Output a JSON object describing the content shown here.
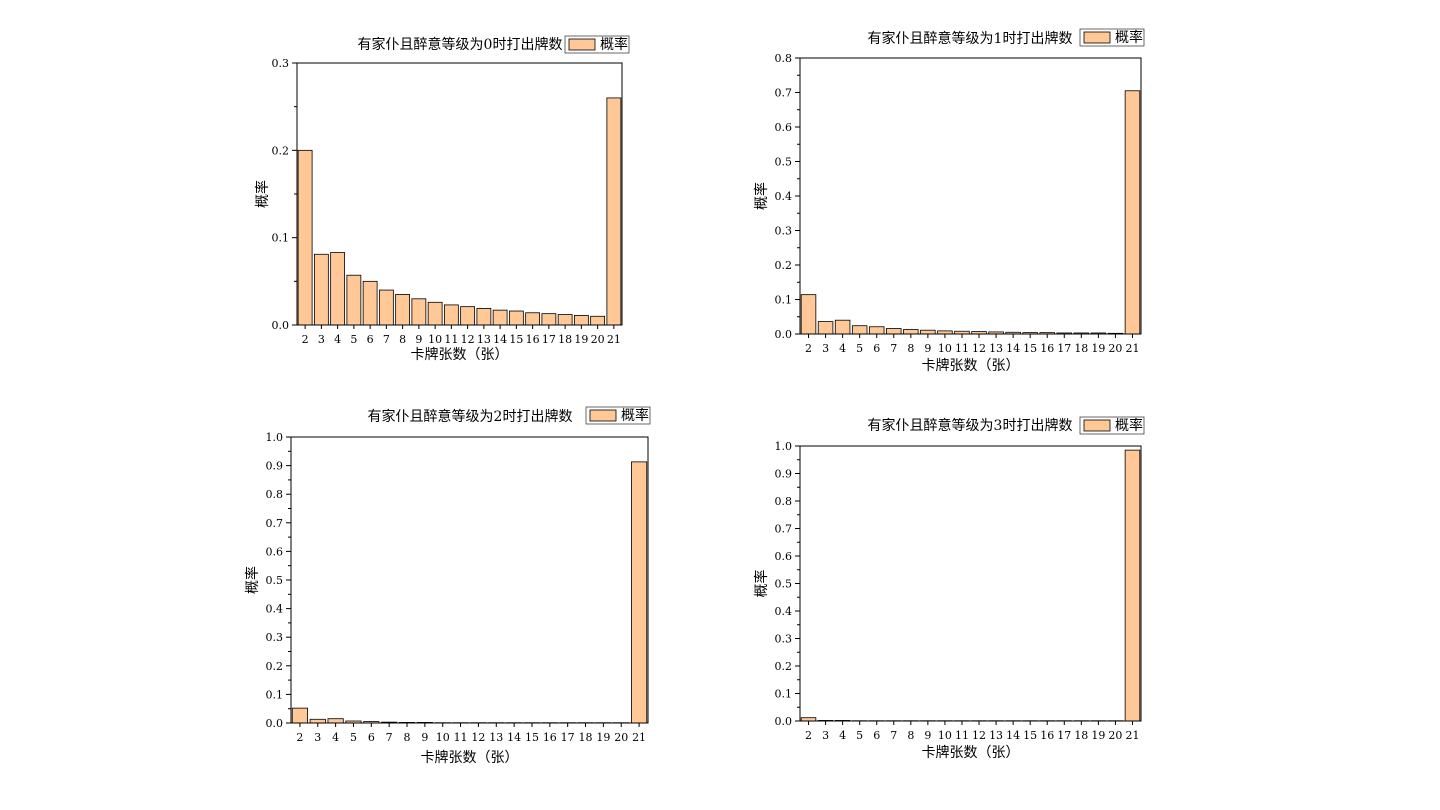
{
  "chart_data": [
    {
      "type": "bar",
      "title": "有家仆且醉意等级为0时打出牌数",
      "legend": "概率",
      "xlabel": "卡牌张数（张）",
      "ylabel": "概率",
      "ylim": [
        0,
        0.3
      ],
      "yticks": [
        0.0,
        0.1,
        0.2,
        0.3
      ],
      "ytick_labels": [
        "0.0",
        "0.1",
        "0.2",
        "0.3"
      ],
      "categories": [
        "2",
        "3",
        "4",
        "5",
        "6",
        "7",
        "8",
        "9",
        "10",
        "11",
        "12",
        "13",
        "14",
        "15",
        "16",
        "17",
        "18",
        "19",
        "20",
        "21"
      ],
      "values": [
        0.2,
        0.081,
        0.083,
        0.057,
        0.05,
        0.04,
        0.035,
        0.03,
        0.026,
        0.023,
        0.021,
        0.019,
        0.017,
        0.016,
        0.014,
        0.013,
        0.012,
        0.011,
        0.01,
        0.26
      ]
    },
    {
      "type": "bar",
      "title": "有家仆且醉意等级为1时打出牌数",
      "legend": "概率",
      "xlabel": "卡牌张数（张）",
      "ylabel": "概率",
      "ylim": [
        0,
        0.8
      ],
      "yticks": [
        0.0,
        0.1,
        0.2,
        0.3,
        0.4,
        0.5,
        0.6,
        0.7,
        0.8
      ],
      "ytick_labels": [
        "0.0",
        "0.1",
        "0.2",
        "0.3",
        "0.4",
        "0.5",
        "0.6",
        "0.7",
        "0.8"
      ],
      "categories": [
        "2",
        "3",
        "4",
        "5",
        "6",
        "7",
        "8",
        "9",
        "10",
        "11",
        "12",
        "13",
        "14",
        "15",
        "16",
        "17",
        "18",
        "19",
        "20",
        "21"
      ],
      "values": [
        0.114,
        0.036,
        0.04,
        0.024,
        0.021,
        0.016,
        0.013,
        0.011,
        0.009,
        0.008,
        0.007,
        0.006,
        0.005,
        0.004,
        0.004,
        0.003,
        0.003,
        0.003,
        0.002,
        0.705
      ]
    },
    {
      "type": "bar",
      "title": "有家仆且醉意等级为2时打出牌数",
      "legend": "概率",
      "xlabel": "卡牌张数（张）",
      "ylabel": "概率",
      "ylim": [
        0,
        1.0
      ],
      "yticks": [
        0.0,
        0.1,
        0.2,
        0.3,
        0.4,
        0.5,
        0.6,
        0.7,
        0.8,
        0.9,
        1.0
      ],
      "ytick_labels": [
        "0.0",
        "0.1",
        "0.2",
        "0.3",
        "0.4",
        "0.5",
        "0.6",
        "0.7",
        "0.8",
        "0.9",
        "1.0"
      ],
      "categories": [
        "2",
        "3",
        "4",
        "5",
        "6",
        "7",
        "8",
        "9",
        "10",
        "11",
        "12",
        "13",
        "14",
        "15",
        "16",
        "17",
        "18",
        "19",
        "20",
        "21"
      ],
      "values": [
        0.052,
        0.013,
        0.015,
        0.007,
        0.005,
        0.003,
        0.002,
        0.002,
        0.001,
        0.001,
        0.001,
        0.001,
        0.001,
        0.001,
        0.001,
        0.001,
        0.001,
        0.001,
        0.001,
        0.913
      ]
    },
    {
      "type": "bar",
      "title": "有家仆且醉意等级为3时打出牌数",
      "legend": "概率",
      "xlabel": "卡牌张数（张）",
      "ylabel": "概率",
      "ylim": [
        0,
        1.0
      ],
      "yticks": [
        0.0,
        0.1,
        0.2,
        0.3,
        0.4,
        0.5,
        0.6,
        0.7,
        0.8,
        0.9,
        1.0
      ],
      "ytick_labels": [
        "0.0",
        "0.1",
        "0.2",
        "0.3",
        "0.4",
        "0.5",
        "0.6",
        "0.7",
        "0.8",
        "0.9",
        "1.0"
      ],
      "categories": [
        "2",
        "3",
        "4",
        "5",
        "6",
        "7",
        "8",
        "9",
        "10",
        "11",
        "12",
        "13",
        "14",
        "15",
        "16",
        "17",
        "18",
        "19",
        "20",
        "21"
      ],
      "values": [
        0.012,
        0.002,
        0.002,
        0.001,
        0.001,
        0.001,
        0.001,
        0.001,
        0.001,
        0.001,
        0.001,
        0.001,
        0.001,
        0.001,
        0.001,
        0.001,
        0.001,
        0.001,
        0.001,
        0.985
      ]
    }
  ]
}
